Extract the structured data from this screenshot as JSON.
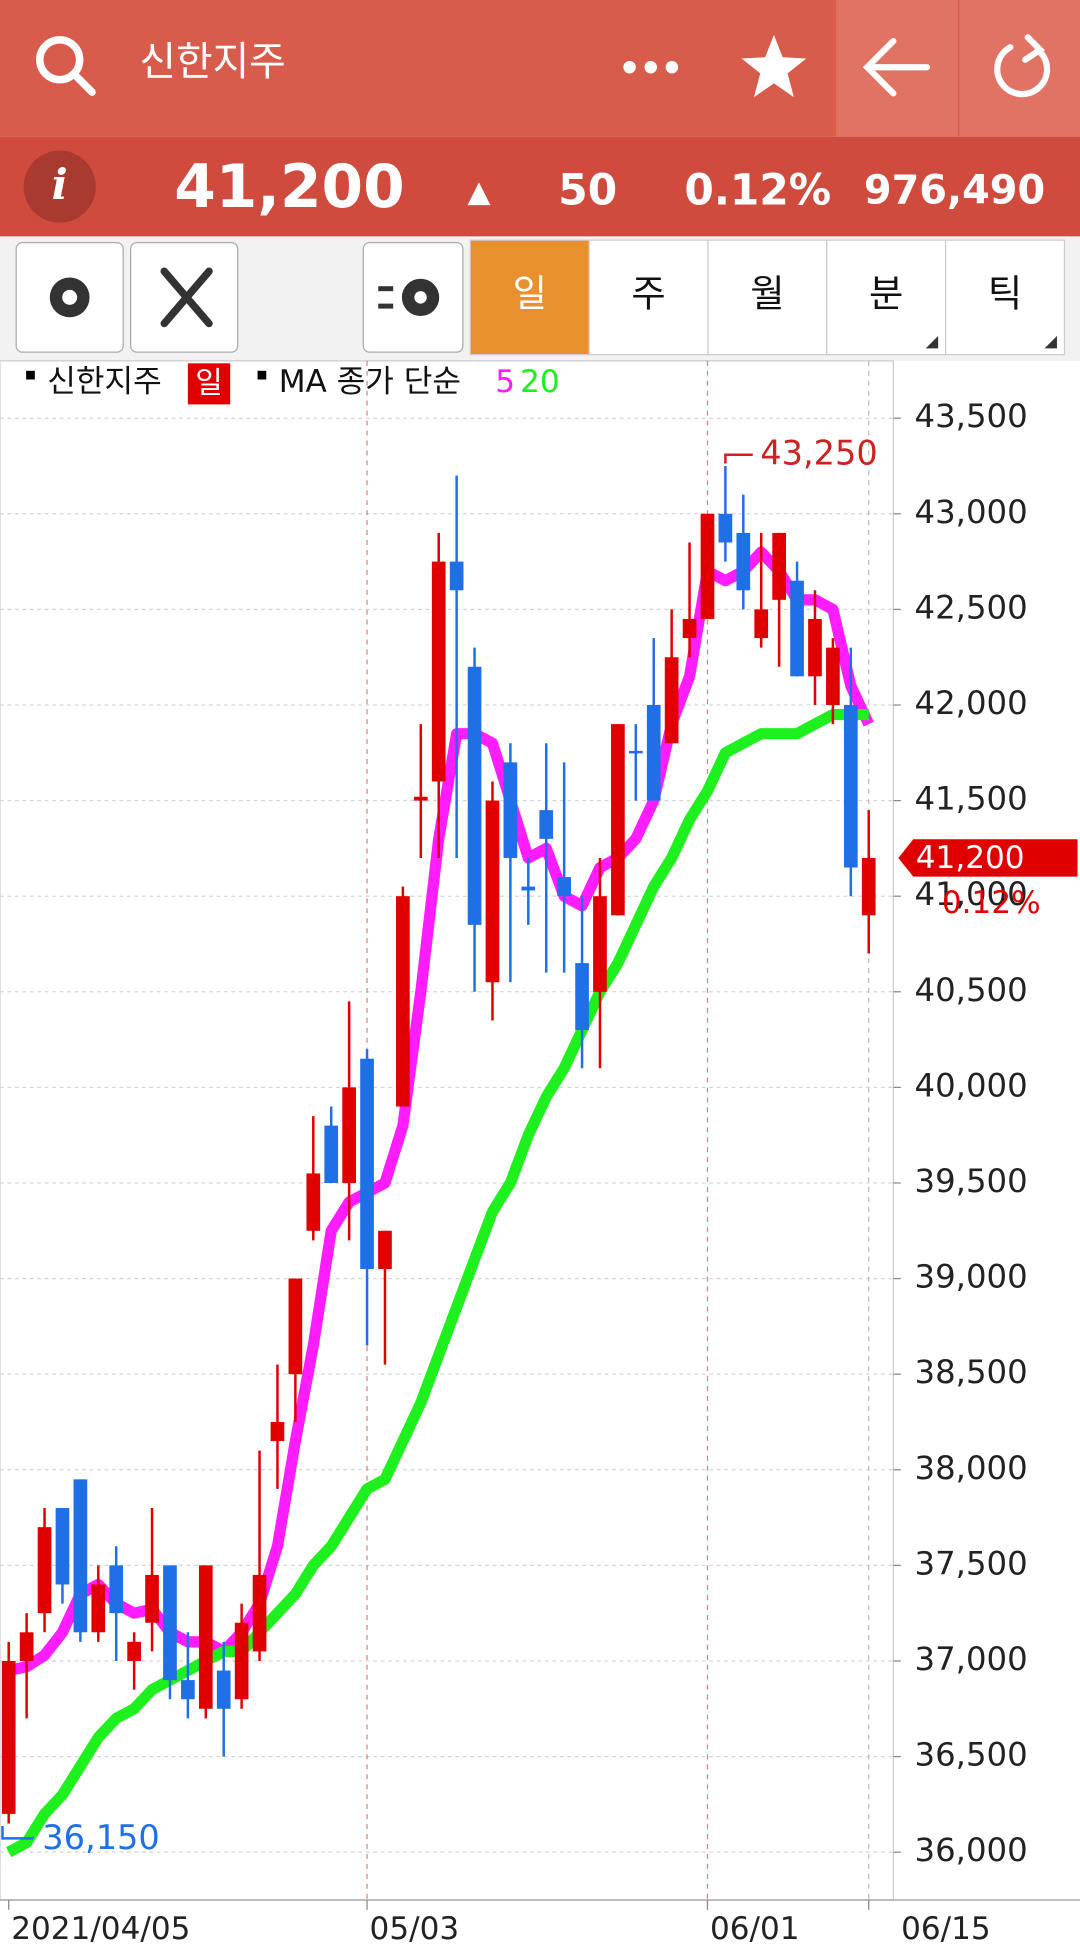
{
  "header": {
    "title": "신한지주"
  },
  "quote": {
    "price": "41,200",
    "direction": "▲",
    "change": "50",
    "change_pct": "0.12%",
    "volume": "976,490"
  },
  "tabs": [
    "일",
    "주",
    "월",
    "분",
    "틱"
  ],
  "legend": {
    "name": "신한지주",
    "period": "일",
    "ma_label": "MA 종가 단순"
  },
  "annotations": {
    "high": "43,250",
    "low": "36,150"
  },
  "chart_data": {
    "type": "candlestick",
    "categories": [
      "2021/04/05",
      null,
      null,
      null,
      null,
      null,
      null,
      null,
      null,
      null,
      null,
      null,
      null,
      null,
      null,
      null,
      null,
      null,
      null,
      null,
      "05/03",
      null,
      null,
      null,
      null,
      null,
      null,
      null,
      null,
      null,
      null,
      null,
      null,
      null,
      null,
      null,
      null,
      null,
      null,
      "06/01",
      null,
      null,
      null,
      null,
      null,
      null,
      null,
      null,
      "06/15"
    ],
    "open": [
      36200,
      37000,
      37250,
      37800,
      37950,
      37150,
      37500,
      37000,
      37200,
      37500,
      36900,
      36750,
      36950,
      36800,
      37050,
      38150,
      38500,
      39250,
      39800,
      39500,
      40150,
      39050,
      39900,
      41500,
      41600,
      42750,
      42200,
      40550,
      41700,
      41050,
      41450,
      41100,
      40650,
      40500,
      40900,
      41760,
      42000,
      41800,
      42350,
      42450,
      43000,
      42900,
      42350,
      42550,
      42650,
      42150,
      42000,
      42000,
      40900
    ],
    "high": [
      37100,
      37250,
      37800,
      37800,
      37950,
      37500,
      37600,
      37150,
      37800,
      37500,
      37150,
      37500,
      37100,
      37300,
      38100,
      38550,
      39000,
      39850,
      39900,
      40450,
      40200,
      39250,
      41050,
      41900,
      42900,
      43200,
      42300,
      41600,
      41800,
      41200,
      41800,
      41700,
      41000,
      41200,
      41900,
      41900,
      42350,
      42500,
      42850,
      43000,
      43250,
      43100,
      42900,
      42900,
      42750,
      42600,
      42350,
      42300,
      41450
    ],
    "low": [
      36150,
      36700,
      37150,
      37300,
      37100,
      37100,
      37000,
      36850,
      37050,
      36800,
      36700,
      36700,
      36500,
      36750,
      37000,
      37900,
      38250,
      39200,
      39500,
      39200,
      38650,
      38550,
      39900,
      41200,
      41200,
      41200,
      40500,
      40350,
      40550,
      40850,
      40600,
      40600,
      40100,
      40100,
      40900,
      41500,
      41500,
      41800,
      42250,
      42450,
      42750,
      42500,
      42300,
      42200,
      42150,
      42000,
      41900,
      41000,
      40700
    ],
    "close": [
      37000,
      37150,
      37700,
      37400,
      37150,
      37400,
      37250,
      37100,
      37450,
      36900,
      36800,
      37500,
      36750,
      37200,
      37450,
      38250,
      39000,
      39550,
      39500,
      40000,
      39050,
      39250,
      41000,
      41520,
      42750,
      42600,
      40850,
      41500,
      41200,
      41030,
      41300,
      41000,
      40300,
      41000,
      41900,
      41750,
      41500,
      42250,
      42450,
      43000,
      42850,
      42600,
      42500,
      42900,
      42150,
      42450,
      42300,
      41150,
      41200
    ],
    "up_color": "#e00000",
    "down_color": "#1f6fe6",
    "series": [
      {
        "name": "5",
        "color": "#ff1cff",
        "values": [
          36950,
          36970,
          37030,
          37150,
          37350,
          37400,
          37300,
          37250,
          37270,
          37150,
          37100,
          37100,
          37050,
          37150,
          37300,
          37600,
          38150,
          38650,
          39250,
          39400,
          39450,
          39500,
          39800,
          40500,
          41300,
          41850,
          41850,
          41800,
          41500,
          41200,
          41250,
          41000,
          40950,
          41150,
          41200,
          41300,
          41500,
          41900,
          42150,
          42700,
          42650,
          42700,
          42800,
          42700,
          42550,
          42550,
          42500,
          42100,
          41900
        ]
      },
      {
        "name": "20",
        "color": "#1ef01e",
        "values": [
          36000,
          36050,
          36200,
          36300,
          36450,
          36600,
          36700,
          36750,
          36850,
          36900,
          36950,
          37000,
          37050,
          37050,
          37150,
          37250,
          37350,
          37500,
          37600,
          37750,
          37900,
          37950,
          38150,
          38350,
          38600,
          38850,
          39100,
          39350,
          39500,
          39750,
          39950,
          40100,
          40300,
          40500,
          40650,
          40850,
          41050,
          41200,
          41400,
          41550,
          41750,
          41800,
          41850,
          41850,
          41850,
          41900,
          41950,
          41950,
          41950
        ]
      }
    ],
    "ylim": [
      35750,
      43800
    ],
    "yticks": [
      {
        "value": 36000,
        "label": "36,000"
      },
      {
        "value": 36500,
        "label": "36,500"
      },
      {
        "value": 37000,
        "label": "37,000"
      },
      {
        "value": 37500,
        "label": "37,500"
      },
      {
        "value": 38000,
        "label": "38,000"
      },
      {
        "value": 38500,
        "label": "38,500"
      },
      {
        "value": 39000,
        "label": "39,000"
      },
      {
        "value": 39500,
        "label": "39,500"
      },
      {
        "value": 40000,
        "label": "40,000"
      },
      {
        "value": 40500,
        "label": "40,500"
      },
      {
        "value": 41000,
        "label": "41,000"
      },
      {
        "value": 41500,
        "label": "41,500"
      },
      {
        "value": 42000,
        "label": "42,000"
      },
      {
        "value": 42500,
        "label": "42,500"
      },
      {
        "value": 43000,
        "label": "43,000"
      },
      {
        "value": 43500,
        "label": "43,500"
      }
    ],
    "grid": true
  }
}
